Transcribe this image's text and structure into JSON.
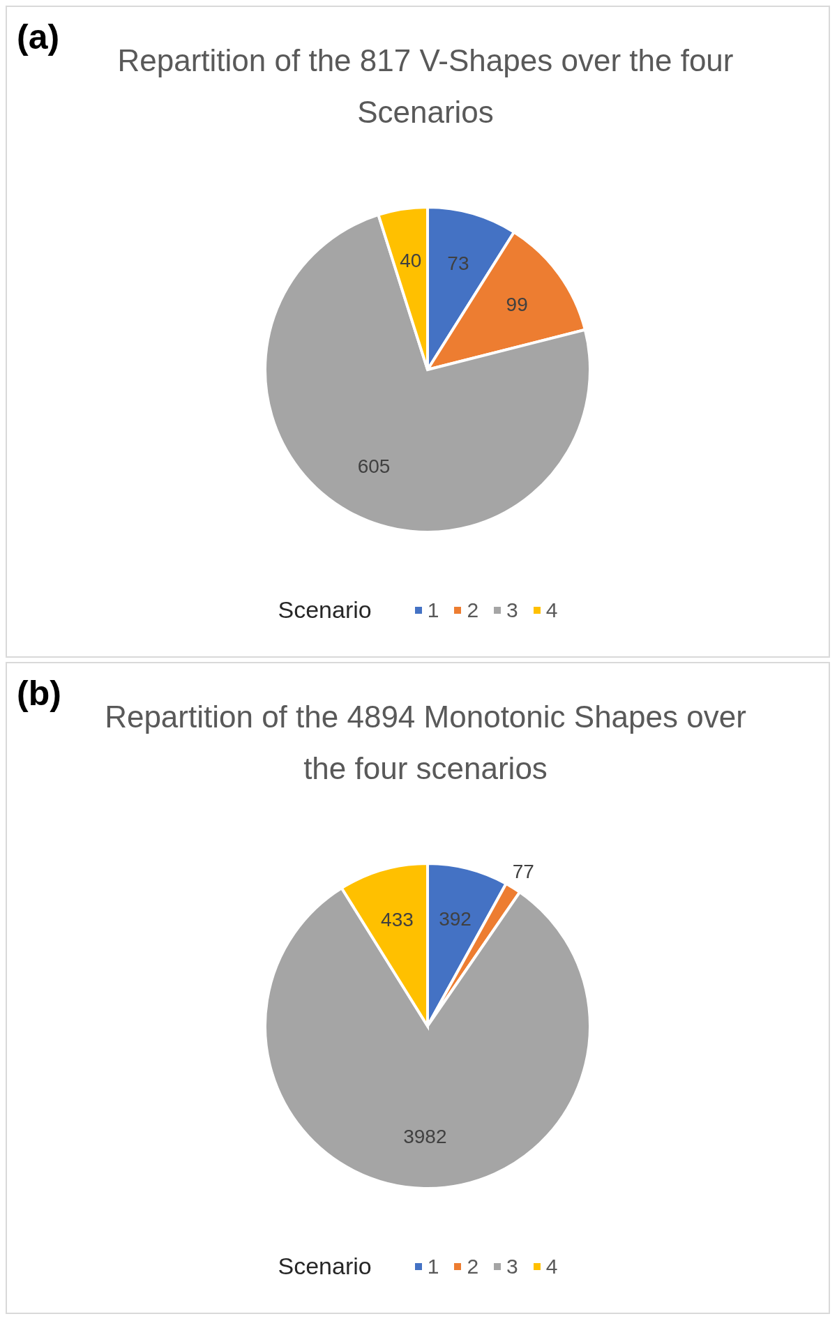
{
  "chart_data": [
    {
      "type": "pie",
      "title": "Repartition of the 817 V-Shapes over the four Scenarios",
      "annotations": [
        "(a)"
      ],
      "legend_title": "Scenario",
      "legend": "bottom",
      "data_labels": true,
      "categories": [
        "1",
        "2",
        "3",
        "4"
      ],
      "values": [
        73,
        99,
        605,
        40
      ],
      "colors": [
        "#4472c4",
        "#ed7d31",
        "#a5a5a5",
        "#ffc000"
      ]
    },
    {
      "type": "pie",
      "title": "Repartition of the 4894 Monotonic Shapes over the four scenarios",
      "annotations": [
        "(b)"
      ],
      "legend_title": "Scenario",
      "legend": "bottom",
      "data_labels": true,
      "categories": [
        "1",
        "2",
        "3",
        "4"
      ],
      "values": [
        392,
        77,
        3982,
        433
      ],
      "colors": [
        "#4472c4",
        "#ed7d31",
        "#a5a5a5",
        "#ffc000"
      ]
    }
  ]
}
